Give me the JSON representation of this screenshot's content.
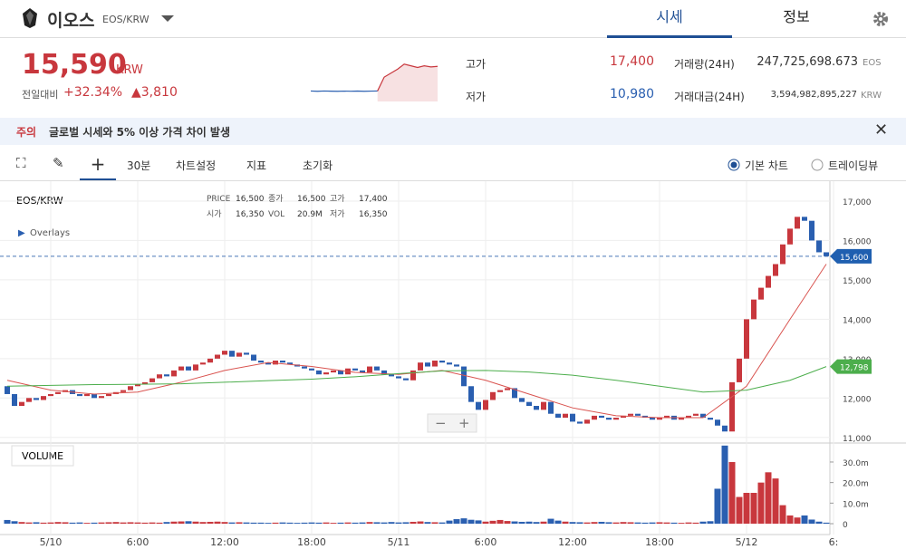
{
  "header": {
    "title": "이오스",
    "code": "EOS/KRW",
    "tabs": [
      "시세",
      "정보"
    ]
  },
  "ticker": {
    "price": "15,590",
    "unit": "KRW",
    "change_label": "전일대비",
    "change_pct": "+32.34%",
    "change_abs": "▲3,810"
  },
  "stats": {
    "high_label": "고가",
    "high": "17,400",
    "low_label": "저가",
    "low": "10,980",
    "volume_label": "거래량(24H)",
    "volume": "247,725,698.673",
    "volume_unit": "EOS",
    "amount_label": "거래대금(24H)",
    "amount": "3,594,982,895,227",
    "amount_unit": "KRW"
  },
  "notice": {
    "tag": "주의",
    "text": "글로벌 시세와 5% 이상 가격 차이 발생"
  },
  "toolbar": {
    "interval": "30분",
    "settings": "차트설정",
    "indicators": "지표",
    "reset": "초기화",
    "modes": [
      "기본 차트",
      "트레이딩뷰"
    ]
  },
  "legend": {
    "symbol": "EOS/KRW",
    "overlays": "Overlays",
    "volume_title": "VOLUME",
    "items": [
      [
        "PRICE",
        "16,500"
      ],
      [
        "시가",
        "16,350"
      ],
      [
        "종가",
        "16,500"
      ],
      [
        "VOL",
        "20.9M"
      ],
      [
        "고가",
        "17,400"
      ],
      [
        "저가",
        "16,350"
      ]
    ]
  },
  "sparkline": {
    "ylim": [
      10000,
      18000
    ],
    "values": [
      11850,
      11800,
      11850,
      11820,
      11800,
      11830,
      11810,
      11840,
      11800,
      11830,
      11850,
      14300,
      15000,
      15700,
      16600,
      16300,
      16000,
      16300,
      16100,
      16200
    ],
    "colors": [
      "#2a5fb0",
      "#c8373d"
    ],
    "split": 10
  },
  "chart_data": {
    "type": "candlestick",
    "open": [
      12300,
      12100,
      11800,
      11900,
      12000,
      11950,
      12050,
      12100,
      12150,
      12200,
      12100,
      12050,
      12100,
      12000,
      12050,
      12100,
      12150,
      12200,
      12300,
      12350,
      12400,
      12500,
      12600,
      12550,
      12700,
      12800,
      12700,
      12850,
      12900,
      13000,
      13100,
      13200,
      13050,
      13150,
      13100,
      12950,
      12900,
      12850,
      12950,
      12900,
      12850,
      12800,
      12750,
      12700,
      12600,
      12650,
      12700,
      12600,
      12750,
      12700,
      12650,
      12800,
      12700,
      12600,
      12550,
      12500,
      12450,
      12700,
      12900,
      12800,
      12950,
      12900,
      12850,
      12800,
      12300,
      11900,
      11700,
      11950,
      12150,
      12200,
      12250,
      12000,
      11900,
      11800,
      11700,
      11900,
      11600,
      11500,
      11600,
      11400,
      11350,
      11450,
      11550,
      11500,
      11450,
      11500,
      11550,
      11600,
      11550,
      11500,
      11450,
      11500,
      11550,
      11450,
      11500,
      11550,
      11600,
      11500,
      11450,
      11300,
      11150,
      12400,
      13000,
      14000,
      14500,
      14800,
      15100,
      15400,
      15900,
      16300,
      16600,
      16500,
      16000,
      15700
    ],
    "close": [
      12100,
      11800,
      11900,
      12000,
      11950,
      12050,
      12100,
      12150,
      12200,
      12100,
      12050,
      12100,
      12000,
      12050,
      12100,
      12150,
      12200,
      12300,
      12350,
      12400,
      12500,
      12600,
      12550,
      12700,
      12800,
      12700,
      12850,
      12900,
      13000,
      13100,
      13200,
      13050,
      13150,
      13100,
      12950,
      12900,
      12850,
      12950,
      12900,
      12850,
      12800,
      12750,
      12700,
      12600,
      12650,
      12700,
      12600,
      12750,
      12700,
      12650,
      12800,
      12700,
      12600,
      12550,
      12500,
      12450,
      12700,
      12900,
      12800,
      12950,
      12900,
      12850,
      12800,
      12300,
      11900,
      11700,
      11950,
      12150,
      12200,
      12250,
      12000,
      11900,
      11800,
      11700,
      11900,
      11600,
      11500,
      11600,
      11400,
      11350,
      11450,
      11550,
      11500,
      11450,
      11500,
      11550,
      11600,
      11550,
      11500,
      11450,
      11500,
      11550,
      11450,
      11500,
      11550,
      11600,
      11500,
      11450,
      11300,
      11150,
      12400,
      13000,
      14000,
      14500,
      14800,
      15100,
      15400,
      15900,
      16300,
      16600,
      16500,
      16000,
      15700,
      15600
    ],
    "volume": [
      1.8,
      1.2,
      0.8,
      0.6,
      0.7,
      0.5,
      0.6,
      0.8,
      0.7,
      0.5,
      0.6,
      0.4,
      0.5,
      0.6,
      0.7,
      0.8,
      0.6,
      0.7,
      0.6,
      0.5,
      0.6,
      0.5,
      0.8,
      1.0,
      1.1,
      1.2,
      1.0,
      0.8,
      0.9,
      1.0,
      0.8,
      0.6,
      0.7,
      0.6,
      0.5,
      0.5,
      0.4,
      0.5,
      0.6,
      0.5,
      0.4,
      0.5,
      0.6,
      0.5,
      0.6,
      0.4,
      0.5,
      0.6,
      0.5,
      0.6,
      0.8,
      0.7,
      0.6,
      0.8,
      0.6,
      0.7,
      0.9,
      1.1,
      0.8,
      0.7,
      0.6,
      1.5,
      2.2,
      2.6,
      1.9,
      1.6,
      1.0,
      1.4,
      1.8,
      1.3,
      1.1,
      0.9,
      1.0,
      0.8,
      1.0,
      2.4,
      1.5,
      1.0,
      0.8,
      0.7,
      0.6,
      0.8,
      0.9,
      0.7,
      0.6,
      0.8,
      0.7,
      0.6,
      0.5,
      0.6,
      0.7,
      0.6,
      0.5,
      0.4,
      0.6,
      0.5,
      1.0,
      1.2,
      17,
      38,
      30,
      13,
      15,
      15,
      20,
      25,
      22,
      9,
      4,
      3,
      4,
      2,
      1,
      0.5
    ],
    "up_color": "#c8373d",
    "down_color": "#2a5fb0",
    "ylim": [
      10880,
      17390
    ],
    "yticks": [
      {
        "value": 11000,
        "label": "11,000"
      },
      {
        "value": 12000,
        "label": "12,000"
      },
      {
        "value": 13000,
        "label": "13,000"
      },
      {
        "value": 14000,
        "label": "14,000"
      },
      {
        "value": 15000,
        "label": "15,000"
      },
      {
        "value": 16000,
        "label": "16,000"
      },
      {
        "value": 17000,
        "label": "17,000"
      }
    ],
    "vlim": [
      -4.4,
      38.8
    ],
    "vticks": [
      0,
      {
        "value": 10,
        "label": "10.0m"
      },
      {
        "value": 20,
        "label": "20.0m"
      },
      {
        "value": 30,
        "label": "30.0m"
      }
    ],
    "xlim": [
      -0.5,
      113.5
    ],
    "xticks": [
      {
        "value": 6,
        "label": "5/10"
      },
      {
        "value": 18,
        "label": "6:00"
      },
      {
        "value": 30,
        "label": "12:00"
      },
      {
        "value": 42,
        "label": "18:00"
      },
      {
        "value": 54,
        "label": "5/11"
      },
      {
        "value": 66,
        "label": "6:00"
      },
      {
        "value": 78,
        "label": "12:00"
      },
      {
        "value": 90,
        "label": "18:00"
      },
      {
        "value": 102,
        "label": "5/12"
      },
      {
        "value": 114,
        "label": "6:"
      }
    ],
    "overlays": [
      {
        "color": "#d9534f",
        "x": [
          0,
          6,
          12,
          18,
          24,
          30,
          36,
          42,
          48,
          54,
          60,
          66,
          72,
          78,
          84,
          90,
          96,
          102,
          108,
          113
        ],
        "values": [
          12450,
          12200,
          12100,
          12150,
          12400,
          12700,
          12900,
          12800,
          12650,
          12600,
          12700,
          12450,
          12100,
          11750,
          11550,
          11500,
          11500,
          12300,
          14000,
          15400
        ]
      },
      {
        "color": "#4cae4c",
        "x": [
          0,
          6,
          12,
          18,
          24,
          30,
          36,
          42,
          48,
          54,
          60,
          66,
          72,
          78,
          84,
          90,
          96,
          102,
          108,
          113
        ],
        "values": [
          12300,
          12320,
          12340,
          12350,
          12360,
          12400,
          12440,
          12480,
          12540,
          12620,
          12690,
          12700,
          12660,
          12580,
          12450,
          12300,
          12150,
          12200,
          12450,
          12798
        ],
        "tag": {
          "value": 12798,
          "label": "12,798"
        }
      }
    ],
    "current": {
      "value": 15600,
      "label": "15,600"
    }
  }
}
